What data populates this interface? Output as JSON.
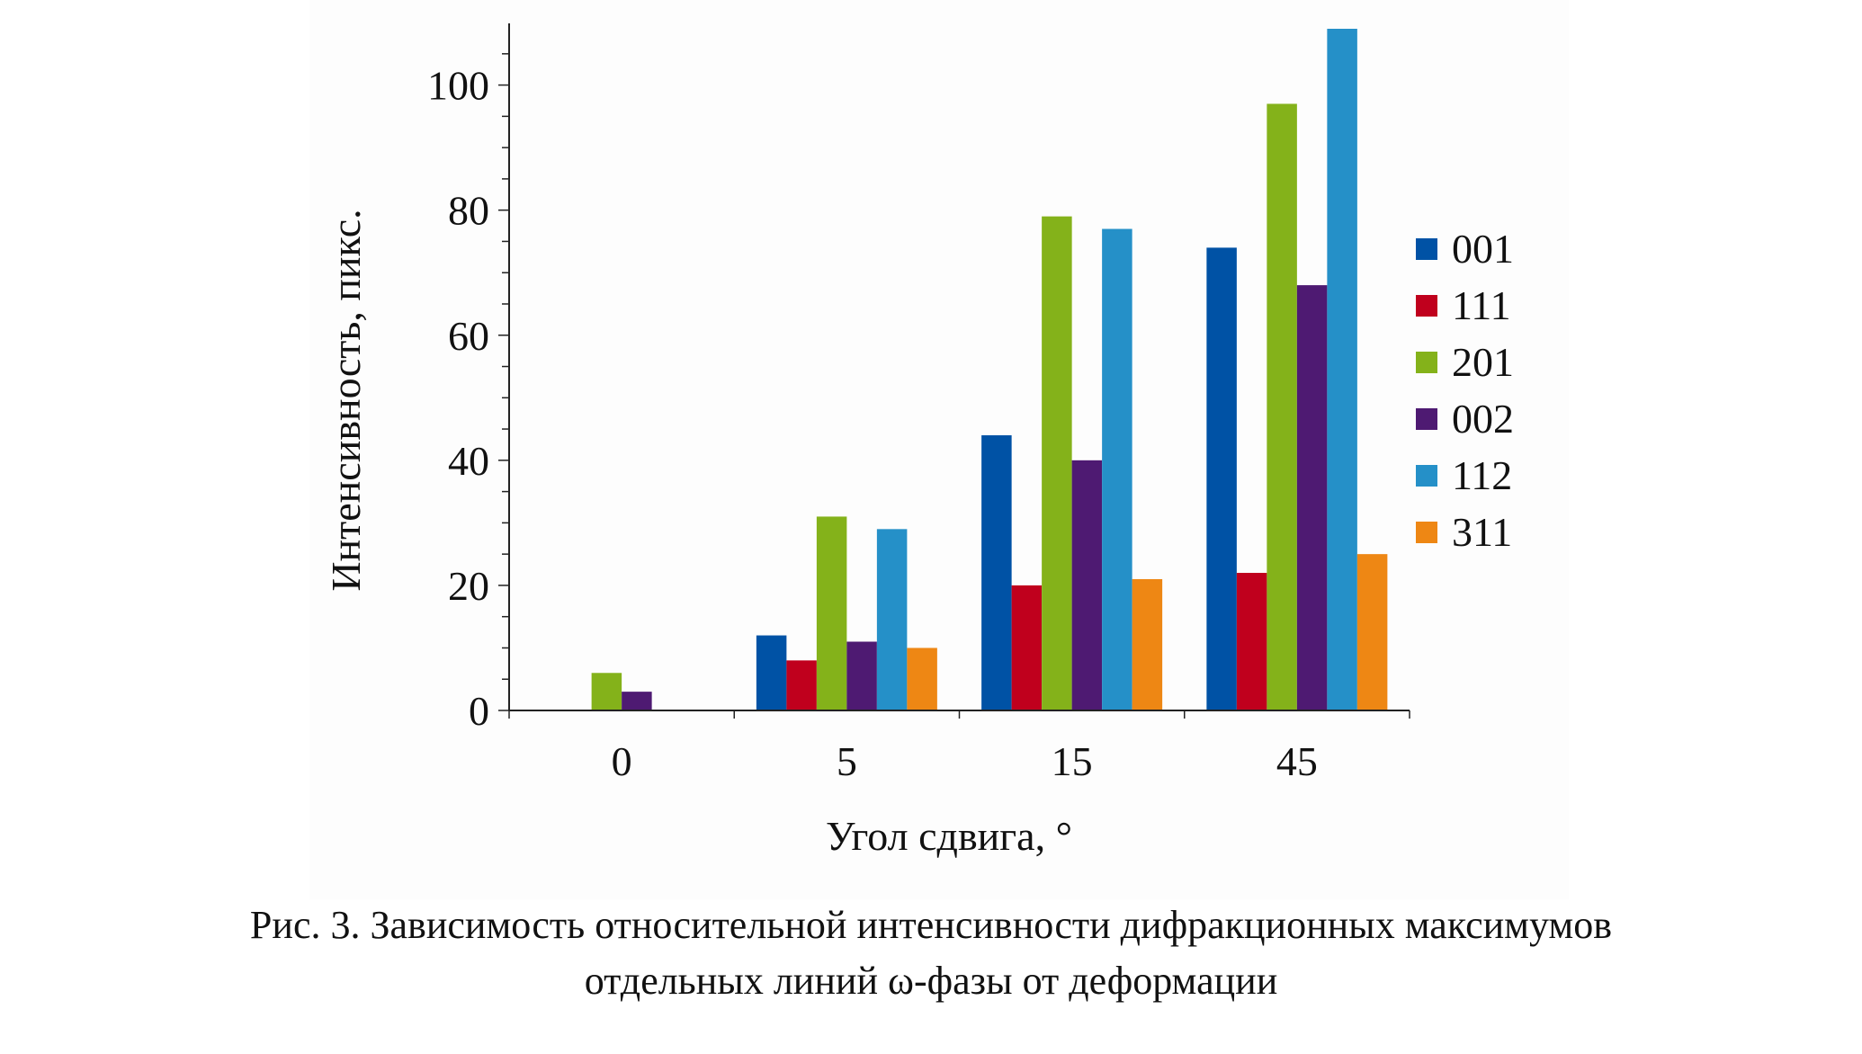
{
  "chart_data": {
    "type": "bar",
    "categories": [
      "0",
      "5",
      "15",
      "45"
    ],
    "series": [
      {
        "name": "001",
        "color": "#0052a5",
        "values": [
          0,
          12,
          44,
          74
        ]
      },
      {
        "name": "111",
        "color": "#c0001d",
        "values": [
          0,
          8,
          20,
          22
        ]
      },
      {
        "name": "201",
        "color": "#84b21a",
        "values": [
          6,
          31,
          79,
          97
        ]
      },
      {
        "name": "002",
        "color": "#4e1a72",
        "values": [
          3,
          11,
          40,
          68
        ]
      },
      {
        "name": "112",
        "color": "#2590c8",
        "values": [
          0,
          29,
          77,
          109
        ]
      },
      {
        "name": "311",
        "color": "#ee8714",
        "values": [
          0,
          10,
          21,
          25
        ]
      }
    ],
    "xlabel": "Угол сдвига, °",
    "ylabel": "Интенсивность, пикс.",
    "ylim": [
      0,
      109
    ],
    "yticks": [
      0,
      20,
      40,
      60,
      80,
      100
    ],
    "legend": "right",
    "grid": false
  },
  "caption": {
    "line1": "Рис. 3. Зависимость относительной интенсивности дифракционных максимумов",
    "line2": "отдельных линий ω-фазы от деформации"
  }
}
